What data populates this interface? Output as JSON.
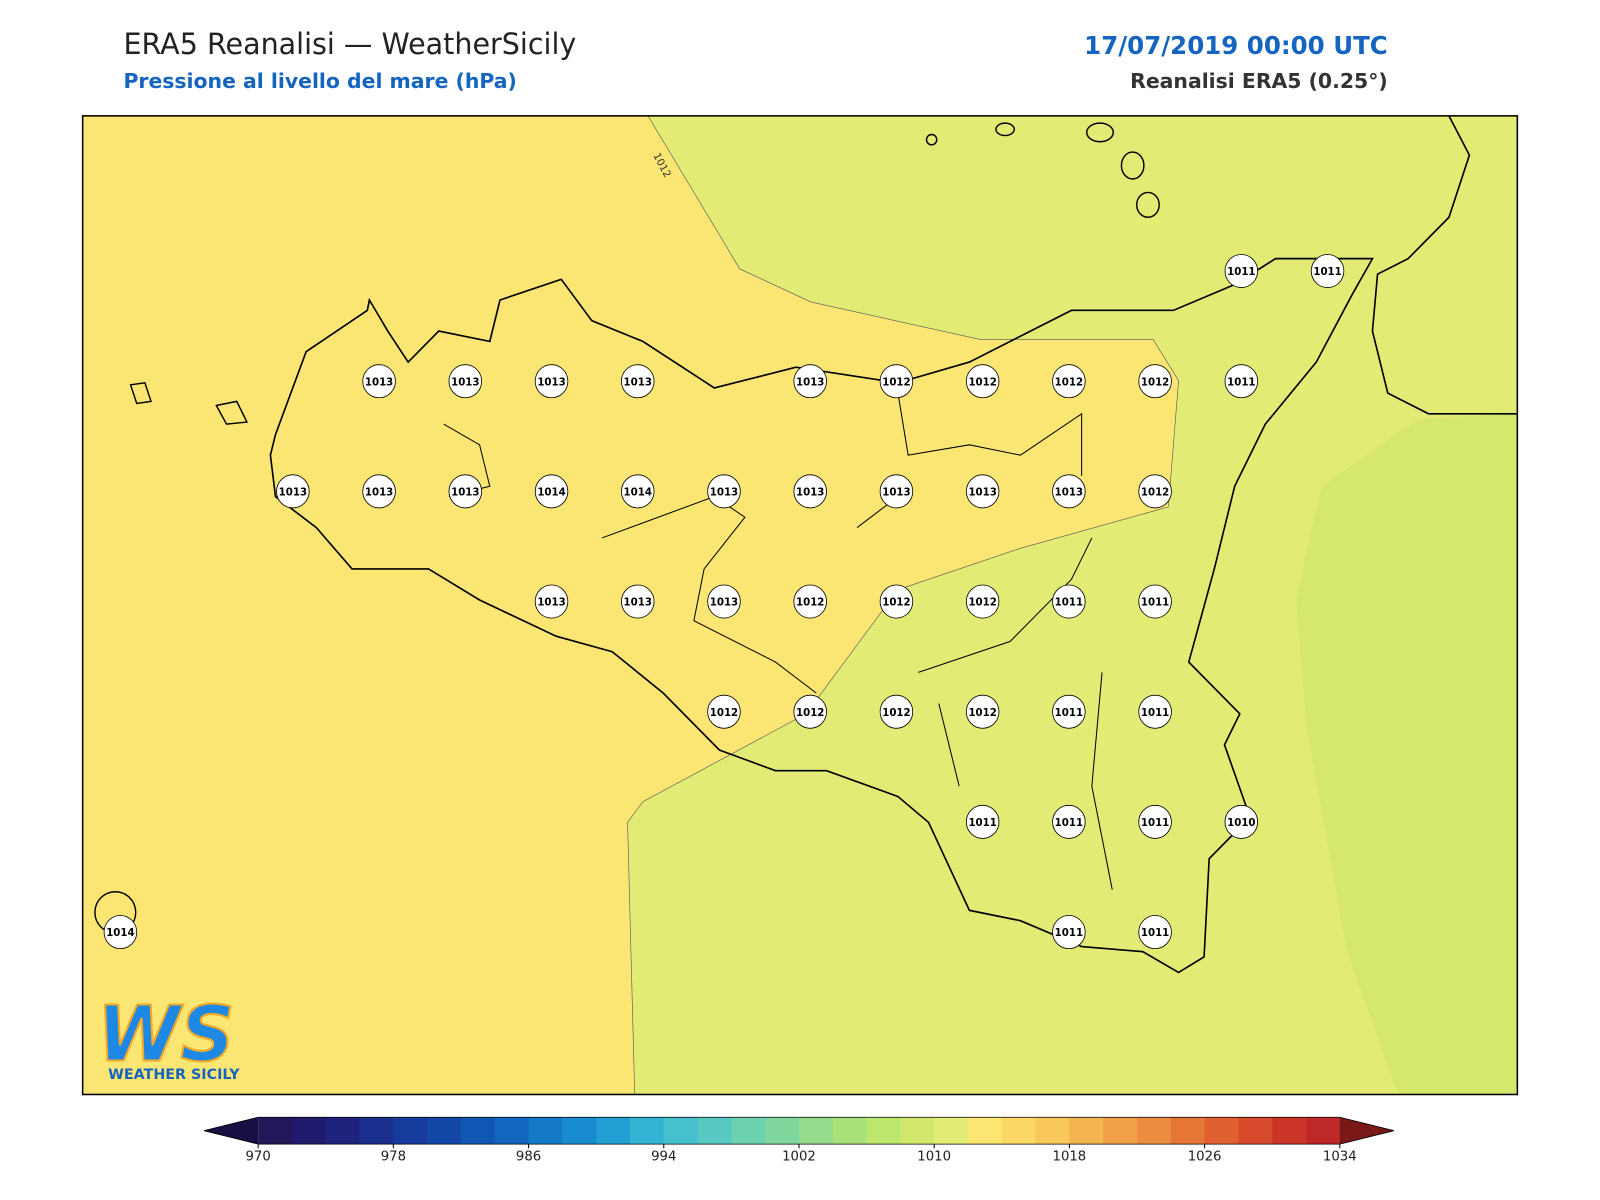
{
  "header": {
    "title": "ERA5 Reanalisi — WeatherSicily",
    "subtitle": "Pressione al livello del mare (hPa)",
    "datetime": "17/07/2019 00:00 UTC",
    "source": "Reanalisi ERA5 (0.25°)"
  },
  "contour_label": "1012",
  "stations": {
    "rows": [
      [
        null,
        null,
        null,
        null,
        null,
        null,
        null,
        null,
        null,
        null,
        null,
        null,
        null,
        1011,
        1011
      ],
      [
        null,
        null,
        null,
        1013,
        1013,
        1013,
        1013,
        null,
        1013,
        1012,
        1012,
        1012,
        1012,
        1011,
        null
      ],
      [
        null,
        null,
        1013,
        1013,
        1013,
        1014,
        1014,
        1013,
        1013,
        1013,
        1013,
        1013,
        1012,
        null,
        null
      ],
      [
        null,
        null,
        null,
        null,
        null,
        1013,
        1013,
        1013,
        1012,
        1012,
        1012,
        1011,
        1011,
        null,
        null
      ],
      [
        null,
        null,
        null,
        null,
        null,
        null,
        null,
        1012,
        1012,
        1012,
        1012,
        1011,
        1011,
        null,
        null
      ],
      [
        null,
        null,
        null,
        null,
        null,
        null,
        null,
        null,
        null,
        null,
        1011,
        1011,
        1011,
        1010,
        null
      ],
      [
        1014,
        null,
        null,
        null,
        null,
        null,
        null,
        null,
        null,
        null,
        null,
        1011,
        1011,
        null,
        null
      ]
    ]
  },
  "colorbar": {
    "range": [
      970,
      1034
    ],
    "ticks": [
      970,
      978,
      986,
      994,
      1002,
      1010,
      1018,
      1026,
      1034
    ],
    "under_color": "#1a0f44",
    "over_color": "#7a1818",
    "colors": [
      "#23175a",
      "#201a6c",
      "#1e237e",
      "#1b2f8e",
      "#173b9c",
      "#1448a8",
      "#1256b4",
      "#1266c0",
      "#147ac8",
      "#198ccf",
      "#22a0d4",
      "#32b4d4",
      "#45c0cc",
      "#58c9c0",
      "#6cd1b0",
      "#80d79e",
      "#94dc8c",
      "#a8e07a",
      "#bce66c",
      "#d2e86c",
      "#e2ec74",
      "#fbe673",
      "#fcd866",
      "#f8c85a",
      "#f4b450",
      "#f0a046",
      "#ec8c3e",
      "#e67636",
      "#e06030",
      "#d84a2c",
      "#cc3628",
      "#be2828"
    ]
  },
  "logo": {
    "mark": "WS",
    "caption": "WEATHER SICILY"
  }
}
